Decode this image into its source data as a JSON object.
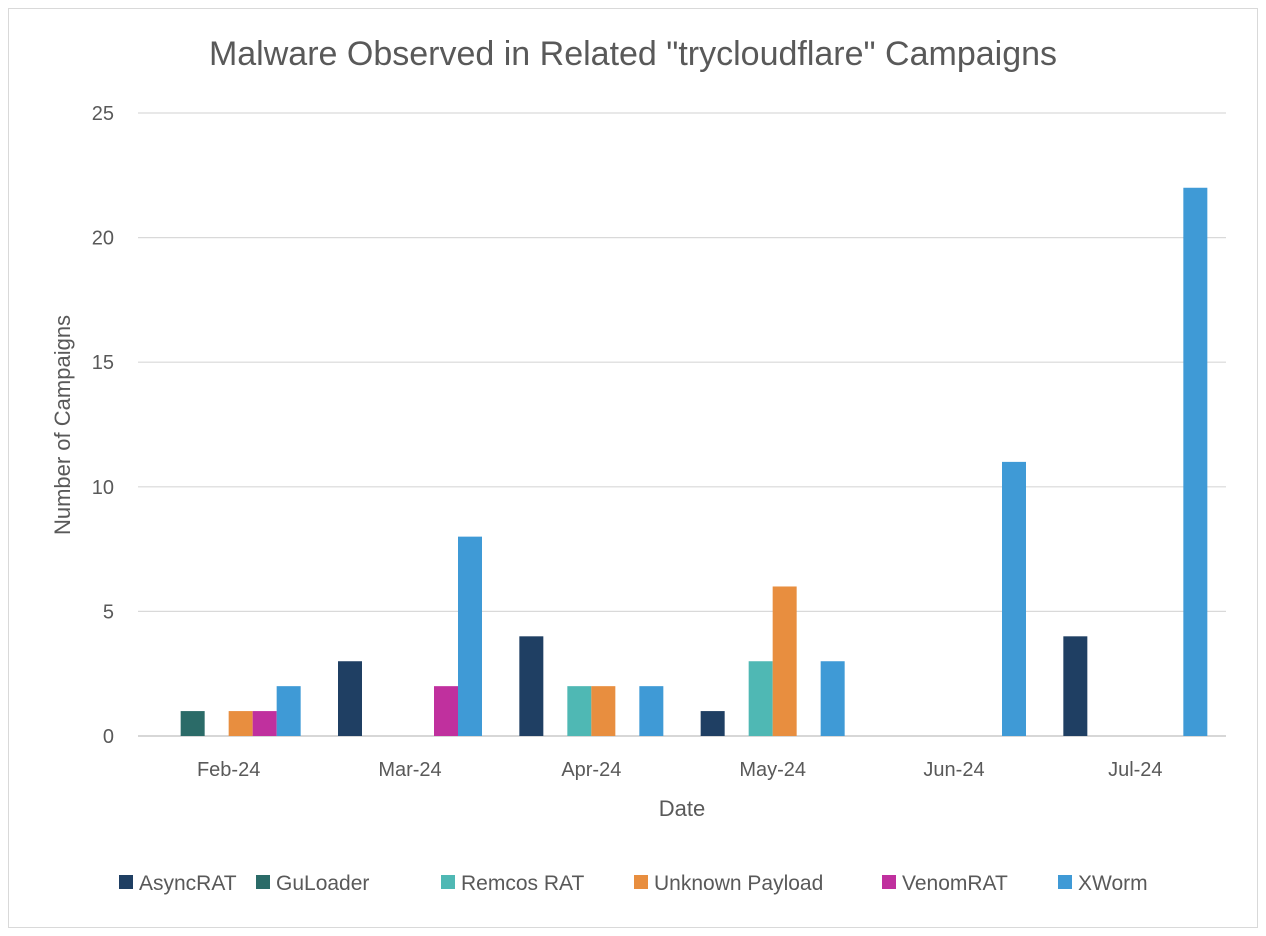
{
  "chart_data": {
    "type": "bar",
    "title": "Malware Observed in Related \"trycloudflare\" Campaigns",
    "xlabel": "Date",
    "ylabel": "Number of Campaigns",
    "ylim": [
      0,
      25
    ],
    "yticks": [
      "0",
      "5",
      "10",
      "15",
      "20",
      "25"
    ],
    "grid": true,
    "legend_position": "bottom",
    "categories": [
      "Feb-24",
      "Mar-24",
      "Apr-24",
      "May-24",
      "Jun-24",
      "Jul-24"
    ],
    "series": [
      {
        "name": "AsyncRAT",
        "color": "#1F3F63",
        "values": [
          0,
          3,
          4,
          1,
          0,
          4
        ]
      },
      {
        "name": "GuLoader",
        "color": "#2B6B68",
        "values": [
          1,
          0,
          0,
          0,
          0,
          0
        ]
      },
      {
        "name": "Remcos RAT",
        "color": "#4FB8B4",
        "values": [
          0,
          0,
          2,
          3,
          0,
          0
        ]
      },
      {
        "name": "Unknown Payload",
        "color": "#E88E3F",
        "values": [
          1,
          0,
          2,
          6,
          0,
          0
        ]
      },
      {
        "name": "VenomRAT",
        "color": "#C0309E",
        "values": [
          1,
          2,
          0,
          0,
          0,
          0
        ]
      },
      {
        "name": "XWorm",
        "color": "#3F9AD6",
        "values": [
          2,
          8,
          2,
          3,
          11,
          22
        ]
      }
    ]
  }
}
